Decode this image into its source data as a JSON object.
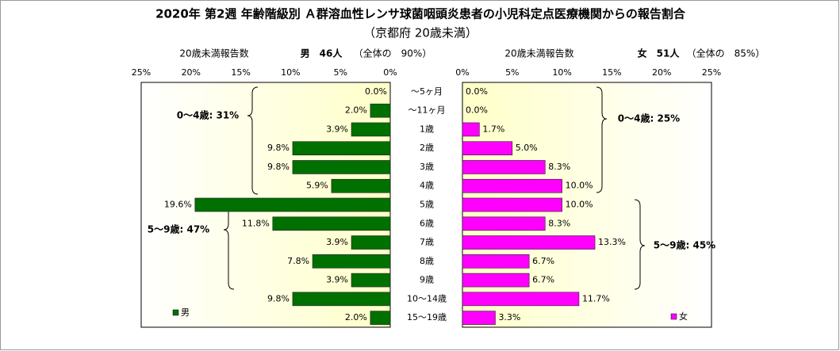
{
  "chart_data": {
    "type": "bar",
    "orientation": "horizontal",
    "title": "2020年 第2週 年齢階級別 Ａ群溶血性レンサ球菌咽頭炎患者の小児科定点医療機関からの報告割合",
    "subtitle": "（京都府 20歳未満）",
    "categories": [
      "～5ヶ月",
      "～11ヶ月",
      "1歳",
      "2歳",
      "3歳",
      "4歳",
      "5歳",
      "6歳",
      "7歳",
      "8歳",
      "9歳",
      "10～14歳",
      "15～19歳"
    ],
    "xlim": [
      0,
      25
    ],
    "xticks": [
      {
        "value": 0,
        "label": "0%"
      },
      {
        "value": 5,
        "label": "5%"
      },
      {
        "value": 10,
        "label": "10%"
      },
      {
        "value": 15,
        "label": "15%"
      },
      {
        "value": 20,
        "label": "20%"
      },
      {
        "value": 25,
        "label": "25%"
      }
    ],
    "series": [
      {
        "name": "男",
        "color": "#007000",
        "count_label": "20歳未満報告数",
        "header": "男　46人",
        "share": "（全体の　90%）",
        "values": [
          0.0,
          2.0,
          3.9,
          9.8,
          9.8,
          5.9,
          19.6,
          11.8,
          3.9,
          7.8,
          3.9,
          9.8,
          2.0
        ],
        "value_labels": [
          "0.0%",
          "2.0%",
          "3.9%",
          "9.8%",
          "9.8%",
          "5.9%",
          "19.6%",
          "11.8%",
          "3.9%",
          "7.8%",
          "3.9%",
          "9.8%",
          "2.0%"
        ],
        "annotations": [
          "0～4歳: 31%",
          "5～9歳: 47%"
        ]
      },
      {
        "name": "女",
        "color": "#ff00ff",
        "count_label": "20歳未満報告数",
        "header": "女　51人",
        "share": "（全体の　85%）",
        "values": [
          0.0,
          0.0,
          1.7,
          5.0,
          8.3,
          10.0,
          10.0,
          8.3,
          13.3,
          6.7,
          6.7,
          11.7,
          3.3
        ],
        "value_labels": [
          "0.0%",
          "0.0%",
          "1.7%",
          "5.0%",
          "8.3%",
          "10.0%",
          "10.0%",
          "8.3%",
          "13.3%",
          "6.7%",
          "6.7%",
          "11.7%",
          "3.3%"
        ],
        "annotations": [
          "0～4歳: 25%",
          "5～9歳: 45%"
        ]
      }
    ]
  }
}
